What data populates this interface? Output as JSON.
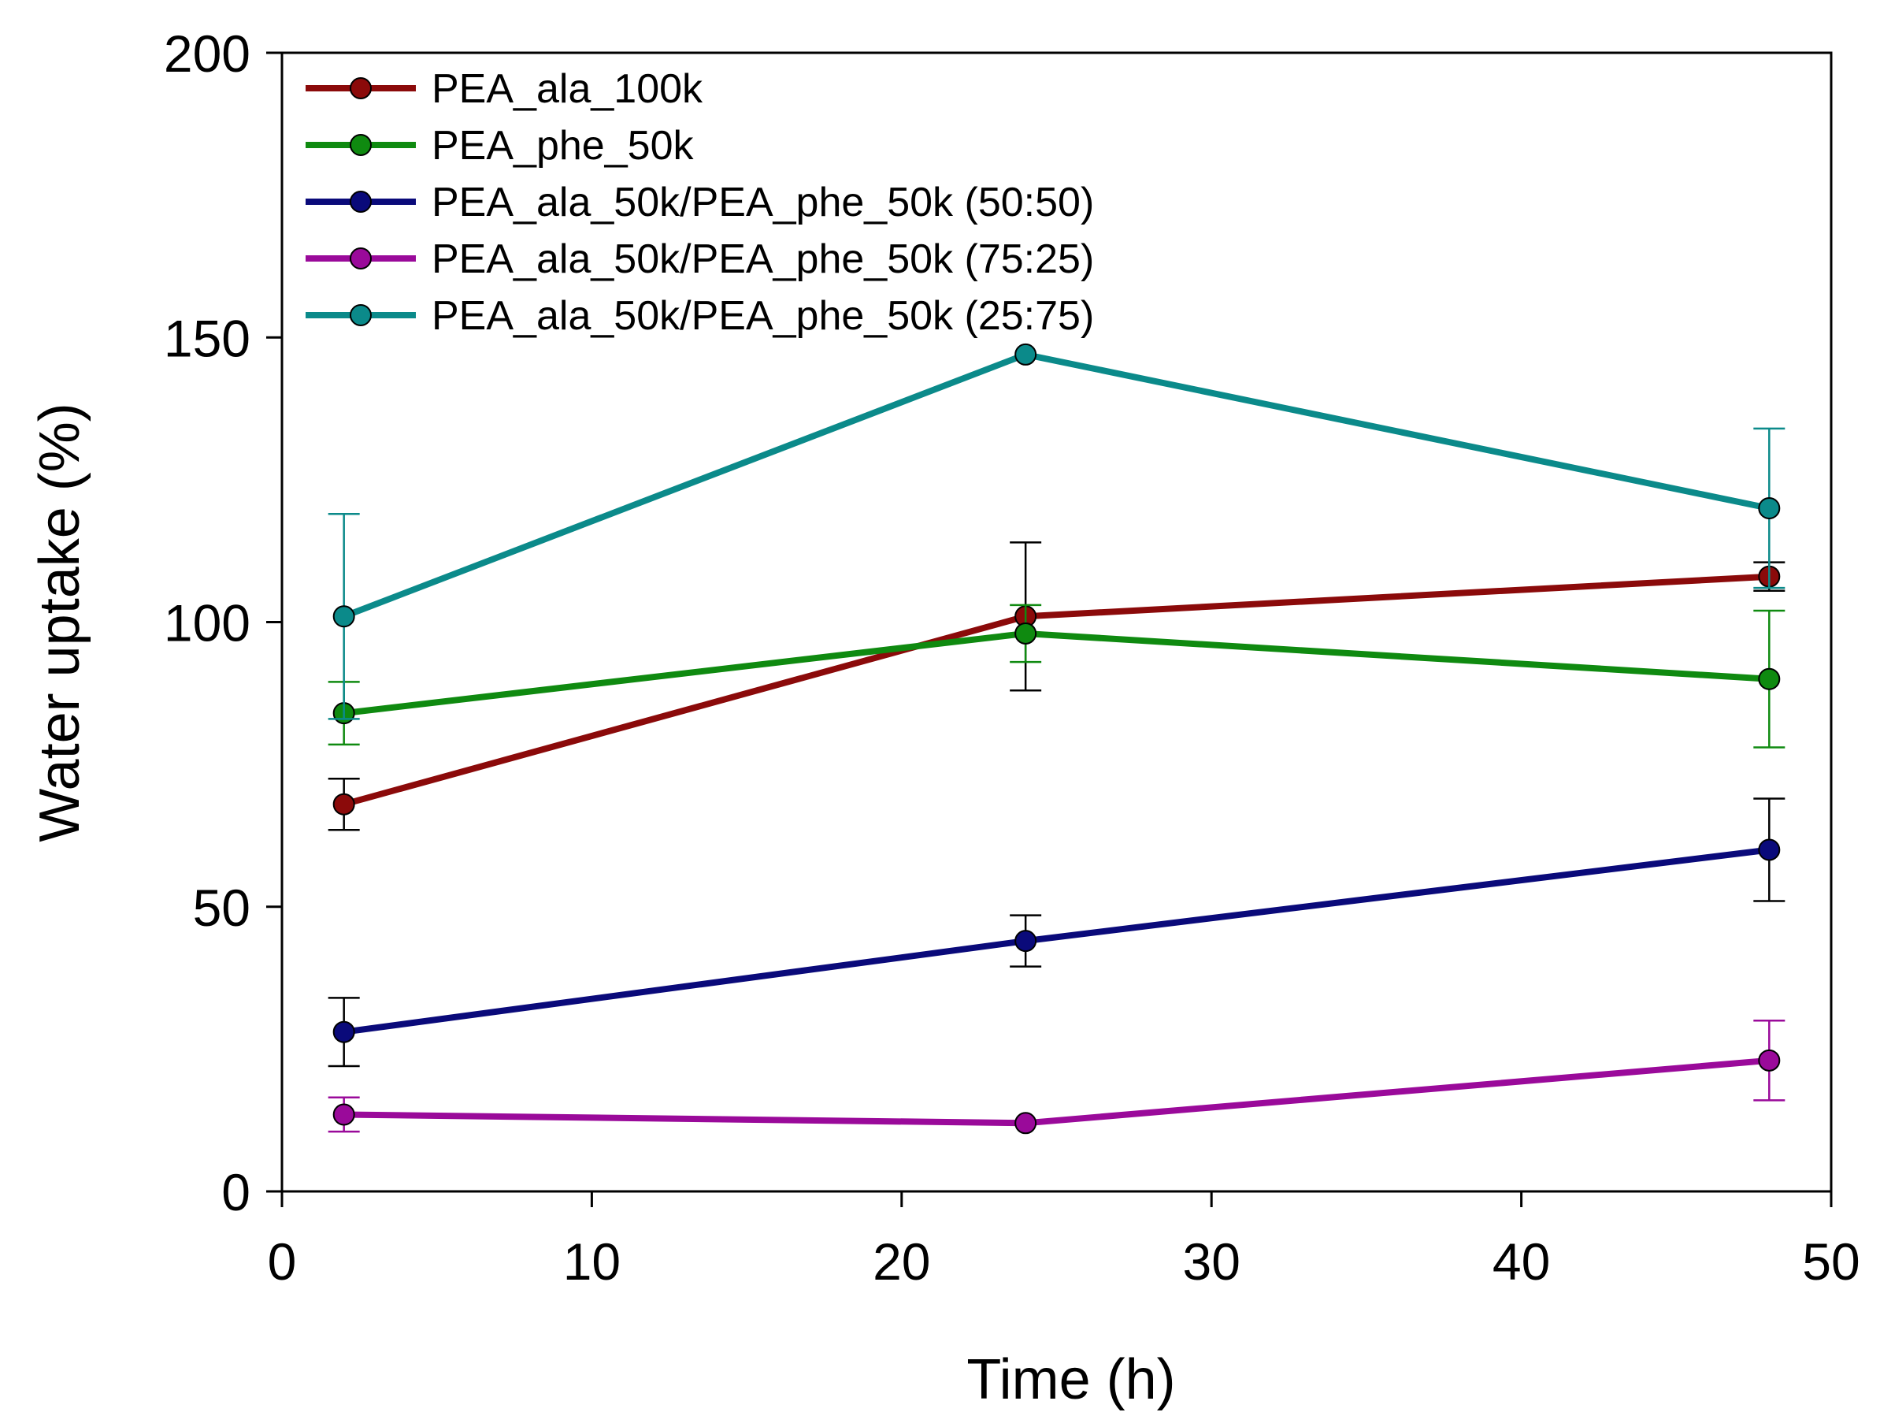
{
  "chart_data": {
    "type": "line",
    "title": "",
    "xlabel": "Time (h)",
    "ylabel": "Water uptake (%)",
    "xlim": [
      0,
      50
    ],
    "ylim": [
      0,
      200
    ],
    "xticks": [
      0,
      10,
      20,
      30,
      40,
      50
    ],
    "yticks": [
      0,
      50,
      100,
      150,
      200
    ],
    "grid": false,
    "legend_position": "top-left",
    "x": [
      2,
      24,
      48
    ],
    "series": [
      {
        "name": "PEA_ala_100k",
        "color": "#8B0A0A",
        "error_color": "#000000",
        "values": [
          68,
          101,
          108
        ],
        "errors": [
          4.5,
          13,
          2.5
        ]
      },
      {
        "name": "PEA_phe_50k",
        "color": "#0F8A10",
        "error_color": "#0F8A10",
        "values": [
          84,
          98,
          90
        ],
        "errors": [
          5.5,
          5,
          12
        ]
      },
      {
        "name": "PEA_ala_50k/PEA_phe_50k (50:50)",
        "color": "#0A0A7A",
        "error_color": "#000000",
        "values": [
          28,
          44,
          60
        ],
        "errors": [
          6,
          4.5,
          9
        ]
      },
      {
        "name": "PEA_ala_50k/PEA_phe_50k (75:25)",
        "color": "#9A0A9A",
        "error_color": "#9A0A9A",
        "values": [
          13.5,
          12,
          23
        ],
        "errors": [
          3,
          0.5,
          7
        ]
      },
      {
        "name": "PEA_ala_50k/PEA_phe_50k (25:75)",
        "color": "#0B8A8A",
        "error_color": "#0B8A8A",
        "values": [
          101,
          147,
          120
        ],
        "errors": [
          18,
          0.5,
          14
        ]
      }
    ]
  }
}
